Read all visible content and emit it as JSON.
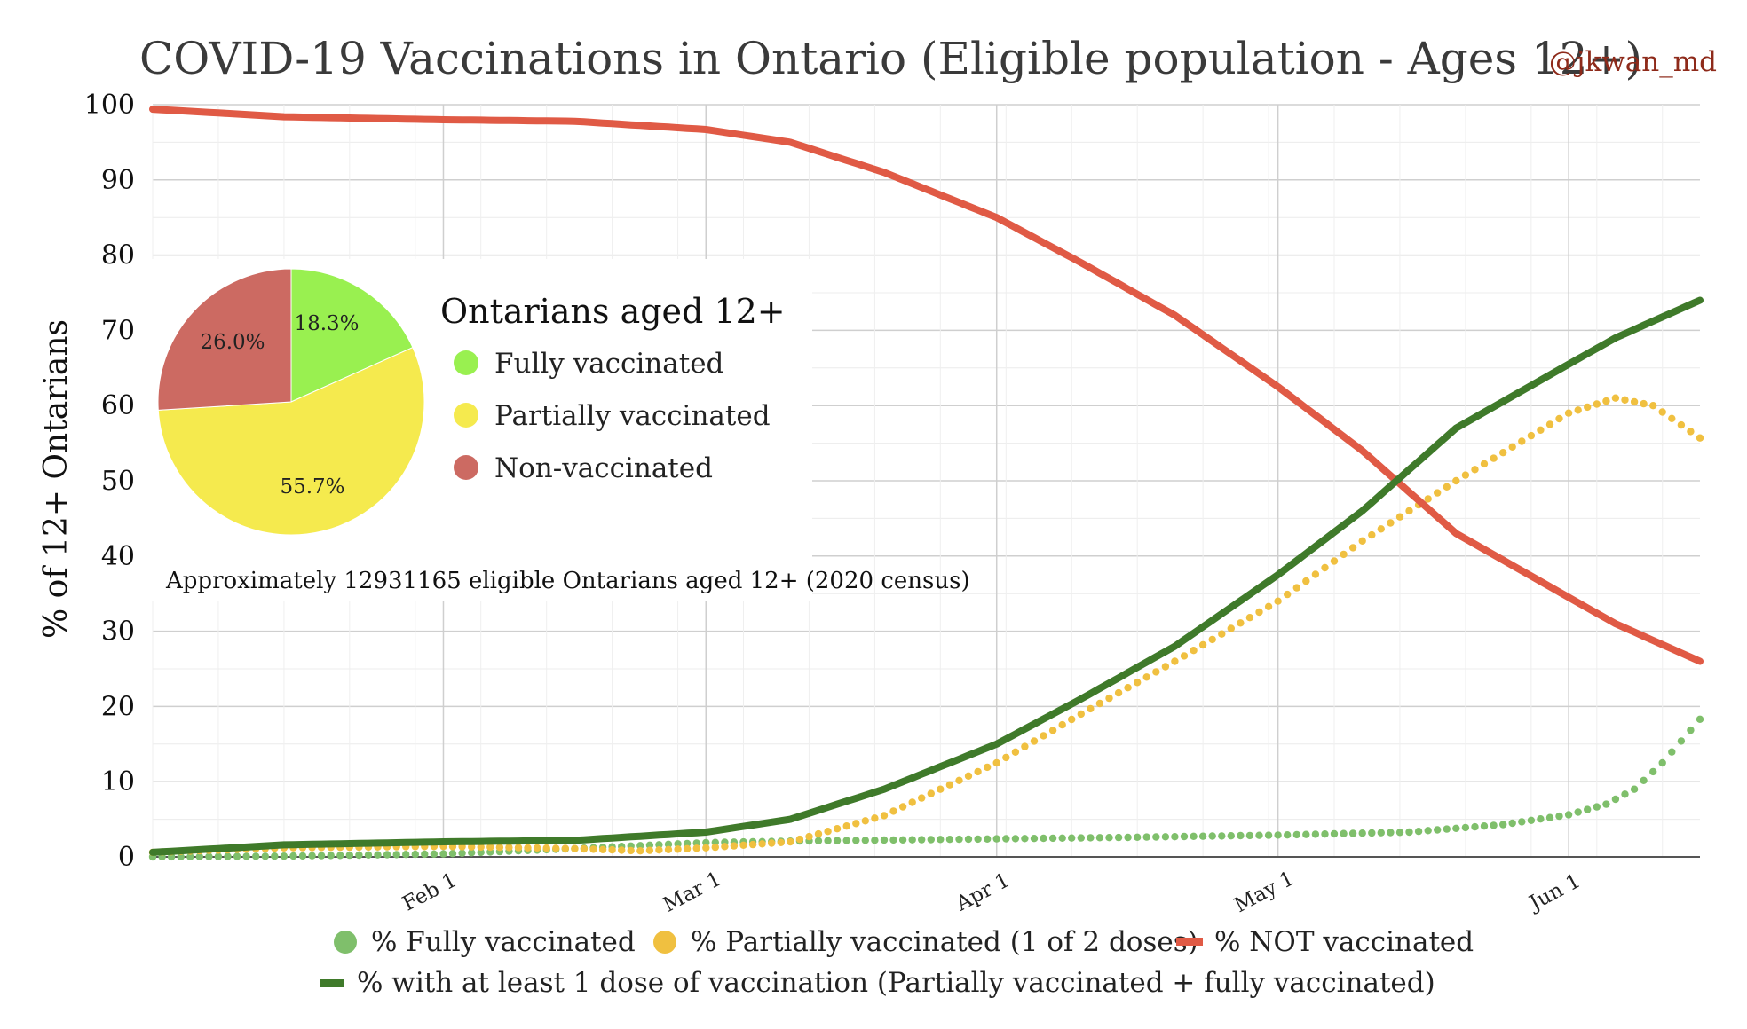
{
  "chart_data": [
    {
      "type": "line",
      "title": "COVID-19 Vaccinations in Ontario (Eligible population - Ages 12+)",
      "attribution": "@jkwan_md",
      "ylabel": "% of 12+ Ontarians",
      "xlabel": "",
      "ylim": [
        0,
        100
      ],
      "y_ticks": [
        0,
        10,
        20,
        30,
        40,
        50,
        60,
        70,
        80,
        90,
        100
      ],
      "grid": true,
      "x_range": [
        "2021-01-01",
        "2021-06-15"
      ],
      "x_ticks": [
        {
          "date": "2021-02-01",
          "label": "Feb 1"
        },
        {
          "date": "2021-03-01",
          "label": "Mar 1"
        },
        {
          "date": "2021-04-01",
          "label": "Apr 1"
        },
        {
          "date": "2021-05-01",
          "label": "May 1"
        },
        {
          "date": "2021-06-01",
          "label": "Jun 1"
        }
      ],
      "legend_placement": "bottom",
      "series": [
        {
          "name": "% Fully vaccinated",
          "style": "dots",
          "color": "#7fbf6b",
          "points": [
            [
              "2021-01-01",
              0.0
            ],
            [
              "2021-01-15",
              0.1
            ],
            [
              "2021-02-01",
              0.4
            ],
            [
              "2021-02-15",
              1.1
            ],
            [
              "2021-03-01",
              1.9
            ],
            [
              "2021-03-10",
              2.1
            ],
            [
              "2021-04-01",
              2.4
            ],
            [
              "2021-04-15",
              2.6
            ],
            [
              "2021-05-01",
              2.9
            ],
            [
              "2021-05-15",
              3.3
            ],
            [
              "2021-05-25",
              4.3
            ],
            [
              "2021-06-01",
              5.6
            ],
            [
              "2021-06-05",
              7.0
            ],
            [
              "2021-06-08",
              9.0
            ],
            [
              "2021-06-11",
              12.5
            ],
            [
              "2021-06-15",
              18.3
            ]
          ]
        },
        {
          "name": "% Partially vaccinated (1 of 2 doses)",
          "style": "dots",
          "color": "#f0c040",
          "points": [
            [
              "2021-01-01",
              0.6
            ],
            [
              "2021-01-15",
              1.2
            ],
            [
              "2021-02-01",
              1.4
            ],
            [
              "2021-02-15",
              1.1
            ],
            [
              "2021-02-22",
              0.8
            ],
            [
              "2021-03-01",
              1.2
            ],
            [
              "2021-03-10",
              2.0
            ],
            [
              "2021-03-20",
              5.5
            ],
            [
              "2021-04-01",
              12.5
            ],
            [
              "2021-04-10",
              19.0
            ],
            [
              "2021-04-20",
              26.0
            ],
            [
              "2021-05-01",
              34.0
            ],
            [
              "2021-05-10",
              42.0
            ],
            [
              "2021-05-20",
              50.0
            ],
            [
              "2021-05-28",
              56.0
            ],
            [
              "2021-06-01",
              59.0
            ],
            [
              "2021-06-06",
              61.0
            ],
            [
              "2021-06-10",
              60.0
            ],
            [
              "2021-06-15",
              55.7
            ]
          ]
        },
        {
          "name": "% NOT vaccinated",
          "style": "line",
          "color": "#e05a45",
          "points": [
            [
              "2021-01-01",
              99.4
            ],
            [
              "2021-01-15",
              98.4
            ],
            [
              "2021-02-01",
              98.0
            ],
            [
              "2021-02-15",
              97.8
            ],
            [
              "2021-03-01",
              96.7
            ],
            [
              "2021-03-10",
              95.0
            ],
            [
              "2021-03-20",
              91.0
            ],
            [
              "2021-04-01",
              85.0
            ],
            [
              "2021-04-10",
              79.0
            ],
            [
              "2021-04-20",
              72.0
            ],
            [
              "2021-05-01",
              62.5
            ],
            [
              "2021-05-10",
              54.0
            ],
            [
              "2021-05-20",
              43.0
            ],
            [
              "2021-06-01",
              34.5
            ],
            [
              "2021-06-06",
              31.0
            ],
            [
              "2021-06-15",
              26.0
            ]
          ]
        },
        {
          "name": "% with at least 1 dose of vaccination (Partially vaccinated + fully vaccinated)",
          "style": "line",
          "color": "#3f7a2a",
          "points": [
            [
              "2021-01-01",
              0.6
            ],
            [
              "2021-01-15",
              1.6
            ],
            [
              "2021-02-01",
              2.0
            ],
            [
              "2021-02-15",
              2.2
            ],
            [
              "2021-03-01",
              3.3
            ],
            [
              "2021-03-10",
              5.0
            ],
            [
              "2021-03-20",
              9.0
            ],
            [
              "2021-04-01",
              15.0
            ],
            [
              "2021-04-10",
              21.0
            ],
            [
              "2021-04-20",
              28.0
            ],
            [
              "2021-05-01",
              37.5
            ],
            [
              "2021-05-10",
              46.0
            ],
            [
              "2021-05-20",
              57.0
            ],
            [
              "2021-06-01",
              65.5
            ],
            [
              "2021-06-06",
              69.0
            ],
            [
              "2021-06-15",
              74.0
            ]
          ]
        }
      ]
    },
    {
      "type": "pie",
      "title": "Ontarians aged 12+",
      "slices": [
        {
          "label": "Fully vaccinated",
          "value": 18.3,
          "display": "18.3%",
          "color": "#99f050"
        },
        {
          "label": "Partially vaccinated",
          "value": 55.7,
          "display": "55.7%",
          "color": "#f5ea4e"
        },
        {
          "label": "Non-vaccinated",
          "value": 26.0,
          "display": "26.0%",
          "color": "#cc6a62"
        }
      ],
      "legend_placement": "right"
    }
  ],
  "inset_note": "Approximately 12931165 eligible Ontarians aged 12+ (2020 census)"
}
